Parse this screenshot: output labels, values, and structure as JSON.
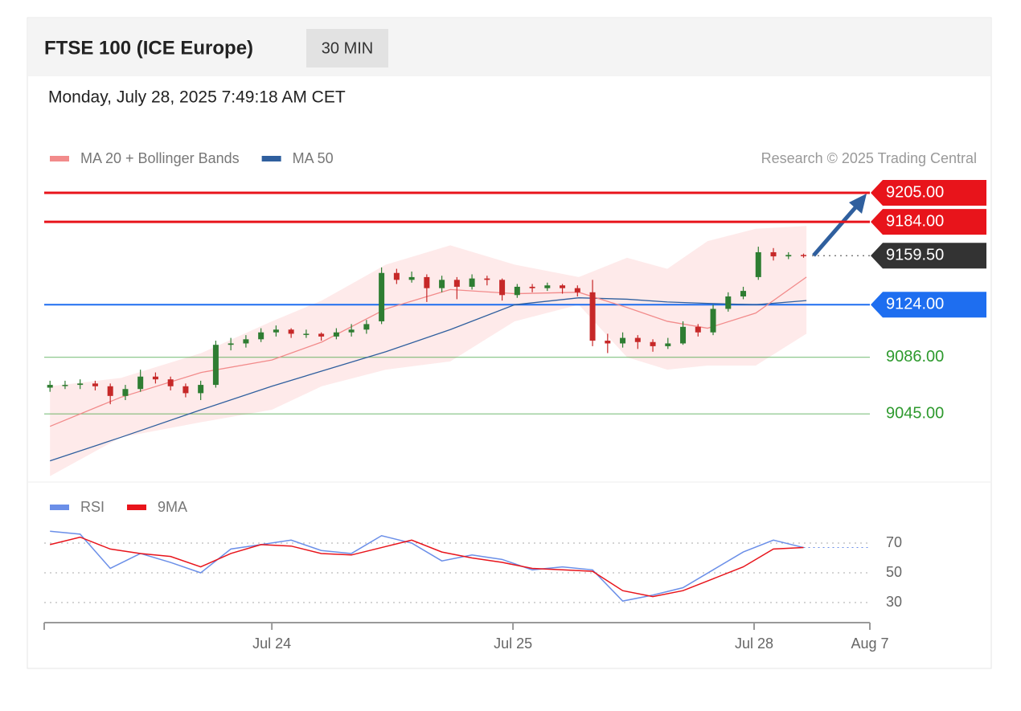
{
  "header": {
    "title": "FTSE 100 (ICE Europe)",
    "timeframe": "30 MIN",
    "timestamp": "Monday, July 28, 2025 7:49:18 AM CET"
  },
  "chart_data": [
    {
      "type": "candlestick",
      "legend": [
        {
          "name": "MA 20 + Bollinger Bands",
          "color": "#f28b8b"
        },
        {
          "name": "MA 50",
          "color": "#2f5f9e"
        }
      ],
      "credit": "Research © 2025 Trading Central",
      "xlim": [
        0.056,
        3.48
      ],
      "ylim": [
        9000,
        9214
      ],
      "colors": {
        "up": "#2e7d32",
        "down": "#c62828"
      },
      "x": [
        0.08,
        0.1425,
        0.205,
        0.2675,
        0.33,
        0.3925,
        0.455,
        0.5175,
        0.58,
        0.6425,
        0.705,
        0.7675,
        0.83,
        0.8925,
        0.955,
        1.0175,
        1.08,
        1.1425,
        1.205,
        1.2675,
        1.33,
        1.3925,
        1.455,
        1.5175,
        1.58,
        1.6425,
        1.705,
        1.7675,
        1.83,
        1.8925,
        1.955,
        2.0175,
        2.08,
        2.1425,
        2.205,
        2.2675,
        2.33,
        2.3925,
        2.455,
        2.5175,
        2.58,
        2.6425,
        2.705,
        2.7675,
        2.83,
        2.8925,
        2.955,
        3.0175,
        3.08,
        3.1425,
        3.205
      ],
      "open": [
        9064,
        9066,
        9066,
        9067,
        9065,
        9058,
        9063,
        9072,
        9070,
        9065,
        9060,
        9066,
        9095,
        9096,
        9099,
        9104,
        9106,
        9103,
        9103,
        9101,
        9104,
        9106,
        9112,
        9147,
        9142,
        9144,
        9136,
        9142,
        9137,
        9143,
        9142,
        9131,
        9137,
        9136,
        9138,
        9136,
        9133,
        9098,
        9096,
        9100,
        9097,
        9094,
        9096,
        9108,
        9104,
        9121,
        9130,
        9144,
        9162,
        9159,
        9160
      ],
      "high": [
        9069,
        9069,
        9070,
        9069,
        9067,
        9066,
        9077,
        9075,
        9072,
        9067,
        9069,
        9098,
        9100,
        9102,
        9107,
        9109,
        9107,
        9106,
        9104,
        9107,
        9110,
        9113,
        9151,
        9150,
        9148,
        9146,
        9145,
        9144,
        9146,
        9145,
        9143,
        9139,
        9139,
        9140,
        9139,
        9138,
        9142,
        9103,
        9104,
        9102,
        9099,
        9100,
        9112,
        9110,
        9124,
        9133,
        9137,
        9166,
        9165,
        9162,
        9161
      ],
      "low": [
        9061,
        9063,
        9063,
        9062,
        9052,
        9055,
        9061,
        9067,
        9062,
        9057,
        9055,
        9064,
        9091,
        9093,
        9097,
        9101,
        9100,
        9100,
        9098,
        9099,
        9101,
        9103,
        9110,
        9139,
        9140,
        9126,
        9133,
        9128,
        9135,
        9138,
        9127,
        9129,
        9133,
        9134,
        9132,
        9130,
        9094,
        9089,
        9093,
        9092,
        9090,
        9092,
        9095,
        9101,
        9102,
        9119,
        9128,
        9142,
        9156,
        9157,
        9158
      ],
      "close": [
        9066,
        9066,
        9067,
        9065,
        9058,
        9063,
        9072,
        9070,
        9065,
        9060,
        9066,
        9095,
        9096,
        9099,
        9104,
        9106,
        9103,
        9103,
        9101,
        9104,
        9106,
        9110,
        9147,
        9142,
        9144,
        9136,
        9142,
        9137,
        9143,
        9142,
        9131,
        9137,
        9136,
        9138,
        9136,
        9133,
        9098,
        9096,
        9100,
        9097,
        9094,
        9096,
        9108,
        9104,
        9121,
        9130,
        9134,
        9162,
        9159,
        9160,
        9159.5
      ],
      "overlay_x": [
        0.08,
        0.373,
        0.707,
        1.0,
        1.207,
        1.473,
        1.74,
        2.007,
        2.273,
        2.473,
        2.64,
        2.807,
        3.007,
        3.217
      ],
      "bands": {
        "color": "#fde3e3",
        "upper": [
          9065,
          9071,
          9089,
          9112,
          9127,
          9153,
          9167,
          9153,
          9144,
          9158,
          9150,
          9170,
          9179,
          9181
        ],
        "lower": [
          9000,
          9028,
          9039,
          9048,
          9065,
          9077,
          9083,
          9112,
          9124,
          9086,
          9077,
          9080,
          9080,
          9103
        ]
      },
      "ma20": {
        "color": "#f28b8b",
        "values": [
          9036,
          9057,
          9075,
          9084,
          9097,
          9121,
          9135,
          9132,
          9133,
          9122,
          9112,
          9107,
          9118,
          9144
        ]
      },
      "ma50": {
        "color": "#2f5f9e",
        "values": [
          9011,
          9028,
          9048,
          9065,
          9076,
          9090,
          9106,
          9124,
          9129,
          9128,
          9126,
          9125,
          9124,
          9127
        ]
      },
      "levels": {
        "values": [
          9205,
          9184,
          9159.5,
          9124,
          9086,
          9045
        ],
        "value_labels": [
          "9205.00",
          "9184.00",
          "9159.50",
          "9124.00",
          "9086.00",
          "9045.00"
        ],
        "colors": [
          "#e8141b",
          "#e8141b",
          "#333333",
          "#1e6ef0",
          "#2e9a2e",
          "#2e9a2e"
        ],
        "boxed": [
          true,
          true,
          true,
          true,
          false,
          false
        ],
        "line_styles": [
          "solid",
          "solid",
          "dotted",
          "solid",
          "solid",
          "solid"
        ]
      }
    },
    {
      "type": "line",
      "xlim": [
        0.056,
        3.48
      ],
      "ylim": [
        20,
        80
      ],
      "yticks": [
        30,
        50,
        70
      ],
      "xticks": [
        {
          "value": 1,
          "label": "Jul 24"
        },
        {
          "value": 2,
          "label": "Jul 25"
        },
        {
          "value": 3,
          "label": "Jul 28"
        },
        {
          "value": 3.48,
          "label": "Aug 7"
        }
      ],
      "x": [
        0.08,
        0.205,
        0.33,
        0.455,
        0.58,
        0.705,
        0.83,
        0.955,
        1.08,
        1.205,
        1.33,
        1.455,
        1.58,
        1.705,
        1.83,
        1.955,
        2.08,
        2.205,
        2.33,
        2.455,
        2.58,
        2.705,
        2.83,
        2.955,
        3.08,
        3.205
      ],
      "series": [
        {
          "name": "RSI",
          "color": "#6b8fe8",
          "values": [
            78,
            76,
            53,
            63,
            57,
            50,
            66,
            69,
            72,
            65,
            63,
            75,
            70,
            58,
            62,
            59,
            52,
            54,
            52,
            31,
            35,
            40,
            52,
            64,
            72,
            67
          ]
        },
        {
          "name": "9MA",
          "color": "#e8141b",
          "values": [
            69,
            74,
            66,
            63,
            61,
            54,
            63,
            69,
            68,
            63,
            62,
            67,
            72,
            64,
            60,
            57,
            53,
            52,
            51,
            38,
            34,
            38,
            46,
            54,
            66,
            67
          ]
        }
      ]
    }
  ]
}
